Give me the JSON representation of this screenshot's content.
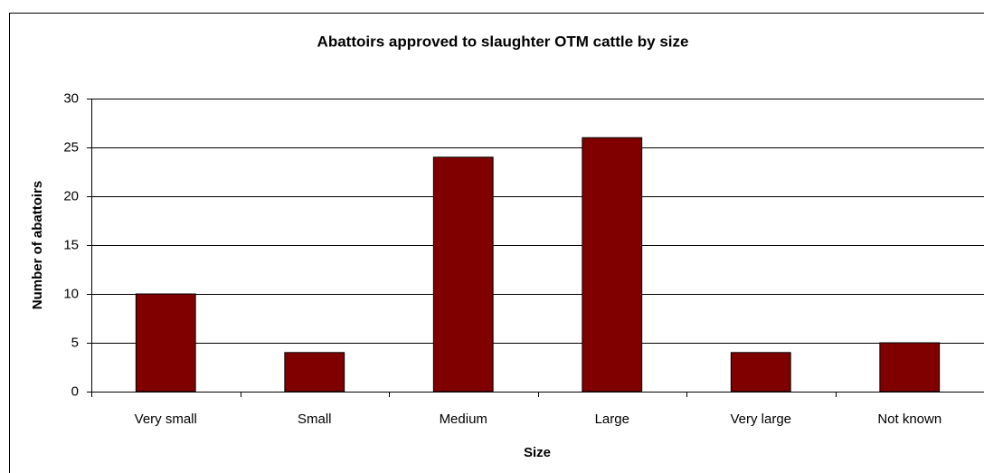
{
  "chart_data": {
    "type": "bar",
    "title": "Abattoirs approved to slaughter OTM cattle by size",
    "x_label": "Size",
    "y_label": "Number of abattoirs",
    "categories": [
      "Very small",
      "Small",
      "Medium",
      "Large",
      "Very large",
      "Not known"
    ],
    "values": [
      10,
      4,
      24,
      26,
      4,
      5
    ],
    "color": "#800000",
    "ylim": [
      0,
      30
    ],
    "yticks": [
      0,
      5,
      10,
      15,
      20,
      25,
      30
    ],
    "grid": true
  }
}
